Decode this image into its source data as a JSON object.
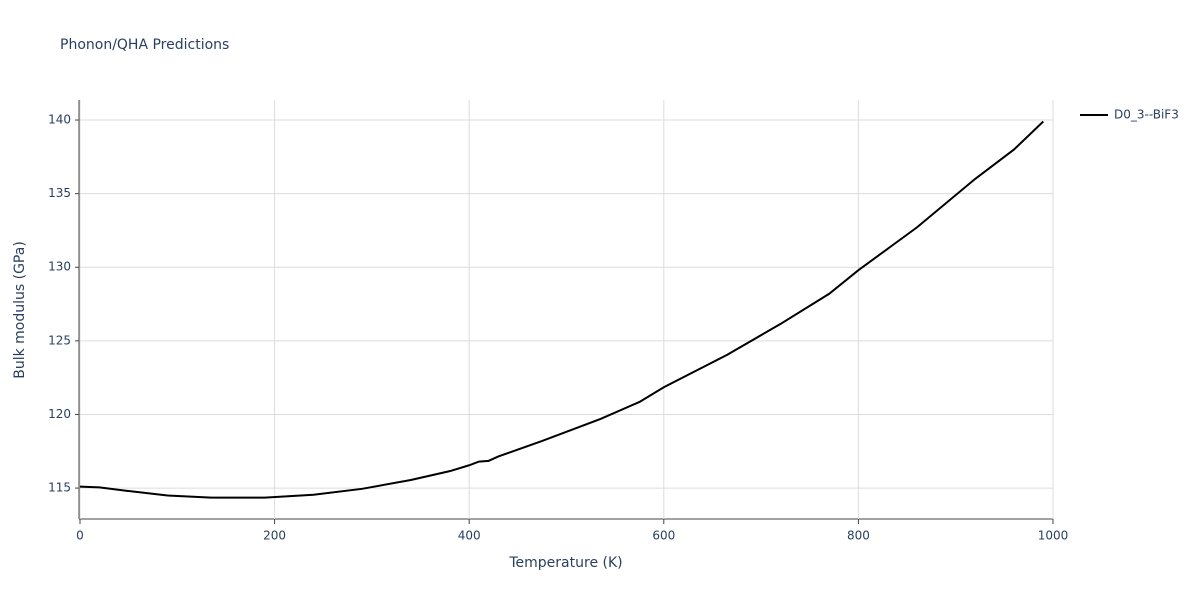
{
  "chart_data": {
    "type": "line",
    "title": "Phonon/QHA Predictions",
    "x_label": "Temperature (K)",
    "y_label": "Bulk modulus (GPa)",
    "x": [
      0,
      20,
      50,
      90,
      135,
      190,
      240,
      290,
      340,
      380,
      400,
      410,
      420,
      430,
      475,
      535,
      575,
      600,
      665,
      720,
      770,
      800,
      860,
      920,
      960,
      990
    ],
    "series": [
      {
        "name": "D0_3--BiF3",
        "color": "#000000",
        "values": [
          115.1,
          115.05,
          114.8,
          114.5,
          114.35,
          114.35,
          114.55,
          114.95,
          115.55,
          116.15,
          116.55,
          116.8,
          116.85,
          117.15,
          118.2,
          119.7,
          120.85,
          121.85,
          124.05,
          126.15,
          128.2,
          129.8,
          132.7,
          136.0,
          138.0,
          139.9
        ]
      }
    ],
    "xlim": [
      0,
      1000
    ],
    "xticks": [
      0,
      200,
      400,
      600,
      800,
      1000
    ],
    "ylim": [
      112.9,
      141.36
    ],
    "yticks": [
      115,
      120,
      125,
      130,
      135,
      140
    ],
    "grid": true,
    "legend": "right"
  }
}
